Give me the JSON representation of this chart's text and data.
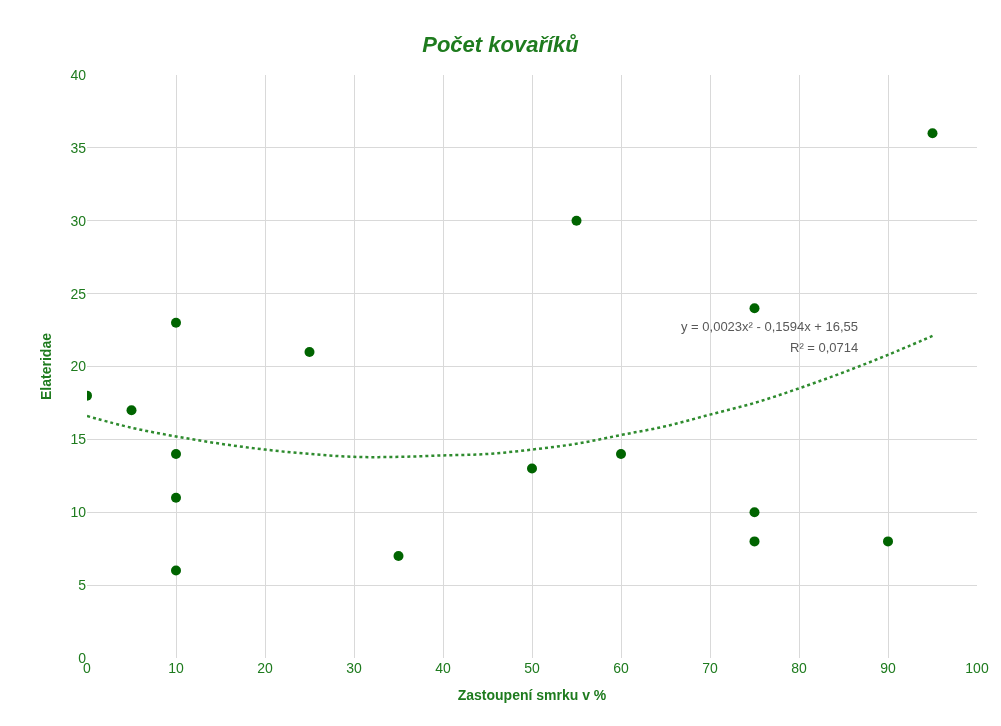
{
  "chart_data": {
    "type": "scatter",
    "title": "Počet kovaříků",
    "xlabel": "Zastoupení smrku v %",
    "ylabel": "Elateridae",
    "x": [
      0,
      5,
      10,
      10,
      10,
      10,
      25,
      35,
      50,
      55,
      60,
      75,
      75,
      75,
      90,
      95
    ],
    "series": [
      {
        "color": "#006400",
        "marker": "circle",
        "values": [
          18,
          17,
          23,
          14,
          11,
          6,
          21,
          7,
          13,
          30,
          14,
          24,
          10,
          8,
          8,
          36
        ]
      },
      {
        "type": "line",
        "line_style": "dotted",
        "color": "#2e8b2e",
        "x": [
          0,
          5,
          10,
          15,
          20,
          25,
          30,
          35,
          40,
          45,
          50,
          55,
          60,
          65,
          70,
          75,
          80,
          85,
          90,
          95
        ],
        "values": [
          16.6,
          15.8,
          15.2,
          14.7,
          14.3,
          14.0,
          13.8,
          13.8,
          13.9,
          14.0,
          14.3,
          14.7,
          15.3,
          15.9,
          16.7,
          17.5,
          18.5,
          19.6,
          20.8,
          22.1
        ]
      }
    ],
    "annotations": [
      "y = 0,0023x² - 0,1594x + 16,55",
      "R² = 0,0714"
    ],
    "xlim": [
      0,
      100
    ],
    "xticks": [
      0,
      10,
      20,
      30,
      40,
      50,
      60,
      70,
      80,
      90,
      100
    ],
    "ylim": [
      0,
      40
    ],
    "yticks": [
      0,
      5,
      10,
      15,
      20,
      25,
      30,
      35,
      40
    ],
    "grid": true
  }
}
